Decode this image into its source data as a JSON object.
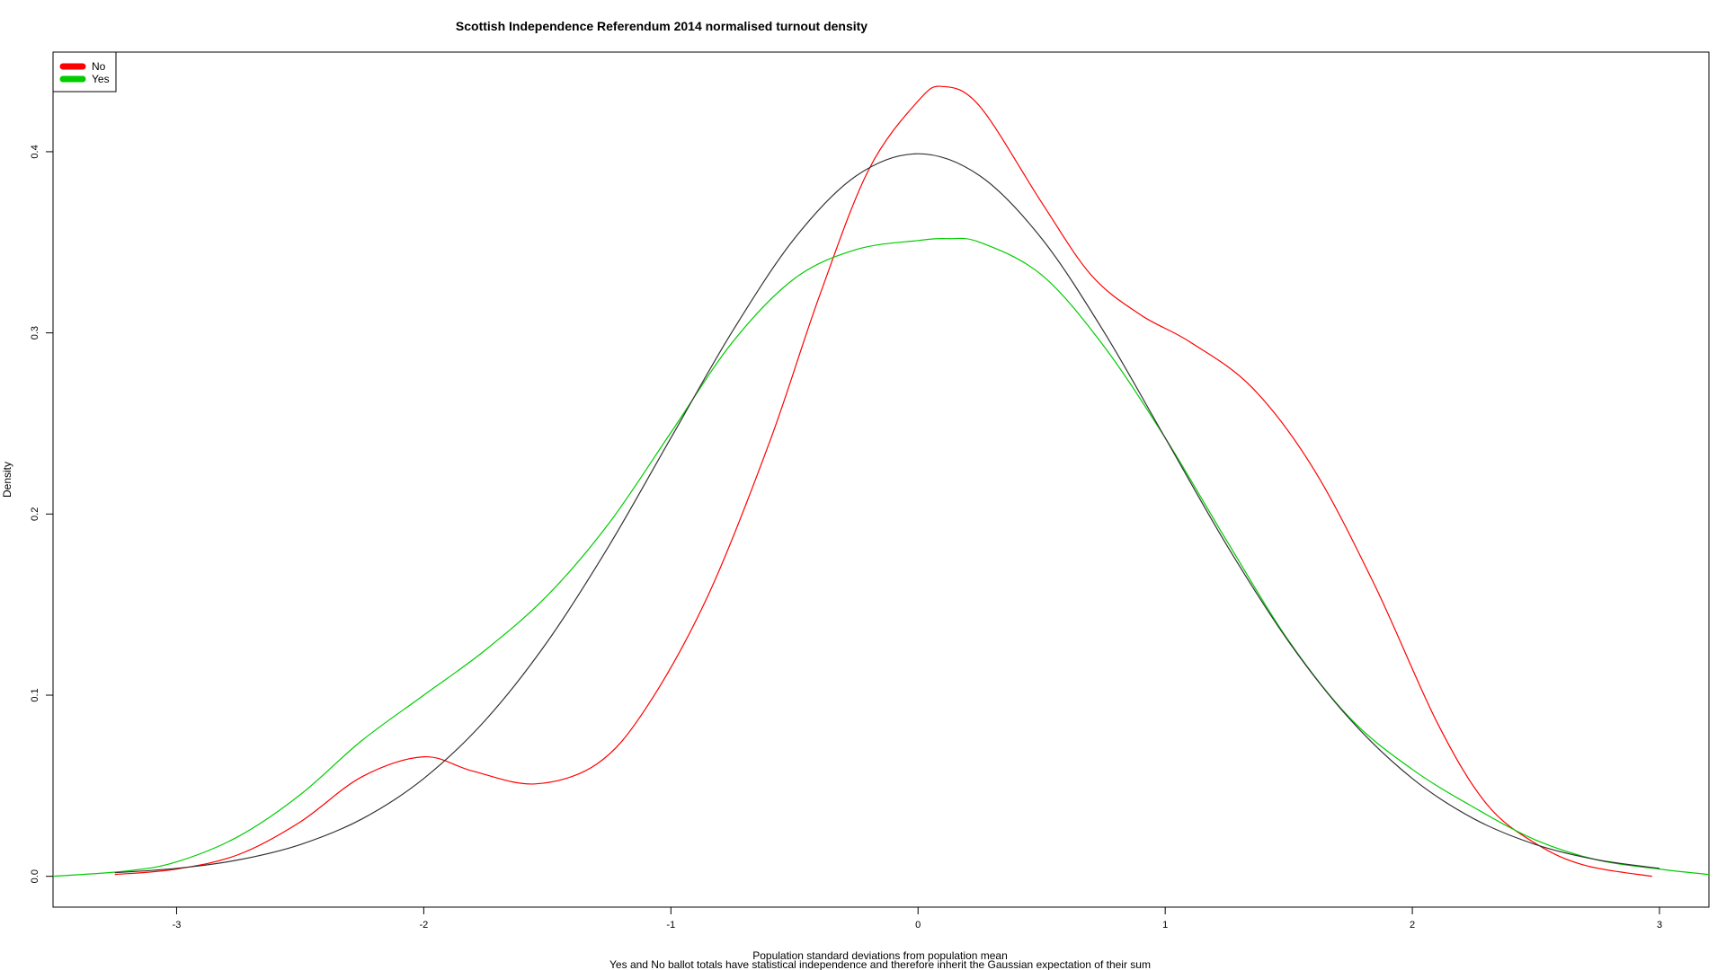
{
  "chart_data": {
    "type": "line",
    "title": "Scottish Independence Referendum 2014 normalised turnout density",
    "xlabel": "Population standard deviations from population mean",
    "xlabel2": "Yes and No ballot totals have statistical independence and therefore inherit the Gaussian expectation of their sum",
    "ylabel": "Density",
    "xlim": [
      -3.5,
      3.2
    ],
    "ylim": [
      -0.017,
      0.455
    ],
    "x_ticks": [
      -3,
      -2,
      -1,
      0,
      1,
      2,
      3
    ],
    "x_tick_labels": [
      "-3",
      "-2",
      "-1",
      "0",
      "1",
      "2",
      "3"
    ],
    "y_ticks": [
      0.0,
      0.1,
      0.2,
      0.3,
      0.4
    ],
    "y_tick_labels": [
      "0.0",
      "0.1",
      "0.2",
      "0.3",
      "0.4"
    ],
    "legend_position": "top-left",
    "legend": [
      {
        "label": "No",
        "color": "#ff0000"
      },
      {
        "label": "Yes",
        "color": "#00cc00"
      }
    ],
    "series": [
      {
        "name": "No",
        "color": "#ff0000",
        "points": [
          [
            -3.25,
            0.001
          ],
          [
            -3.0,
            0.004
          ],
          [
            -2.75,
            0.012
          ],
          [
            -2.5,
            0.03
          ],
          [
            -2.25,
            0.055
          ],
          [
            -2.0,
            0.066
          ],
          [
            -1.8,
            0.058
          ],
          [
            -1.55,
            0.051
          ],
          [
            -1.3,
            0.062
          ],
          [
            -1.1,
            0.093
          ],
          [
            -0.85,
            0.155
          ],
          [
            -0.6,
            0.24
          ],
          [
            -0.4,
            0.32
          ],
          [
            -0.2,
            0.39
          ],
          [
            0.0,
            0.428
          ],
          [
            0.1,
            0.436
          ],
          [
            0.25,
            0.425
          ],
          [
            0.5,
            0.372
          ],
          [
            0.7,
            0.332
          ],
          [
            0.9,
            0.31
          ],
          [
            1.1,
            0.295
          ],
          [
            1.35,
            0.27
          ],
          [
            1.6,
            0.225
          ],
          [
            1.85,
            0.16
          ],
          [
            2.1,
            0.085
          ],
          [
            2.3,
            0.04
          ],
          [
            2.5,
            0.018
          ],
          [
            2.7,
            0.006
          ],
          [
            2.97,
            0.0
          ]
        ]
      },
      {
        "name": "Yes",
        "color": "#00cc00",
        "points": [
          [
            -3.5,
            0.0
          ],
          [
            -3.2,
            0.003
          ],
          [
            -3.0,
            0.008
          ],
          [
            -2.75,
            0.022
          ],
          [
            -2.5,
            0.045
          ],
          [
            -2.25,
            0.075
          ],
          [
            -2.0,
            0.1
          ],
          [
            -1.75,
            0.125
          ],
          [
            -1.5,
            0.155
          ],
          [
            -1.25,
            0.195
          ],
          [
            -1.0,
            0.245
          ],
          [
            -0.75,
            0.295
          ],
          [
            -0.5,
            0.33
          ],
          [
            -0.25,
            0.346
          ],
          [
            0.0,
            0.351
          ],
          [
            0.12,
            0.352
          ],
          [
            0.25,
            0.35
          ],
          [
            0.5,
            0.332
          ],
          [
            0.75,
            0.293
          ],
          [
            1.0,
            0.242
          ],
          [
            1.25,
            0.185
          ],
          [
            1.5,
            0.13
          ],
          [
            1.75,
            0.087
          ],
          [
            2.0,
            0.059
          ],
          [
            2.25,
            0.038
          ],
          [
            2.5,
            0.02
          ],
          [
            2.75,
            0.009
          ],
          [
            3.0,
            0.004
          ],
          [
            3.2,
            0.001
          ]
        ]
      },
      {
        "name": "",
        "color": "#333333",
        "points": [
          [
            -3.25,
            0.002
          ],
          [
            -3.0,
            0.0044
          ],
          [
            -2.75,
            0.0091
          ],
          [
            -2.5,
            0.0175
          ],
          [
            -2.25,
            0.0317
          ],
          [
            -2.0,
            0.054
          ],
          [
            -1.75,
            0.0863
          ],
          [
            -1.5,
            0.1295
          ],
          [
            -1.25,
            0.1826
          ],
          [
            -1.0,
            0.242
          ],
          [
            -0.75,
            0.3011
          ],
          [
            -0.5,
            0.3521
          ],
          [
            -0.25,
            0.3867
          ],
          [
            0.0,
            0.3989
          ],
          [
            0.25,
            0.3867
          ],
          [
            0.5,
            0.3521
          ],
          [
            0.75,
            0.3011
          ],
          [
            1.0,
            0.242
          ],
          [
            1.25,
            0.1826
          ],
          [
            1.5,
            0.1295
          ],
          [
            1.75,
            0.0863
          ],
          [
            2.0,
            0.054
          ],
          [
            2.25,
            0.0317
          ],
          [
            2.5,
            0.0175
          ],
          [
            2.75,
            0.0091
          ],
          [
            3.0,
            0.0044
          ]
        ]
      }
    ]
  }
}
